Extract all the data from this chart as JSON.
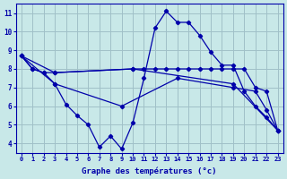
{
  "background_color": "#c8e8e8",
  "grid_color": "#a0c0c8",
  "line_color": "#0000aa",
  "xlabel": "Graphe des températures (°c)",
  "xlim": [
    -0.5,
    23.5
  ],
  "ylim": [
    3.5,
    11.5
  ],
  "yticks": [
    4,
    5,
    6,
    7,
    8,
    9,
    10,
    11
  ],
  "xticks": [
    0,
    1,
    2,
    3,
    4,
    5,
    6,
    7,
    8,
    9,
    10,
    11,
    12,
    13,
    14,
    15,
    16,
    17,
    18,
    19,
    20,
    21,
    22,
    23
  ],
  "line1_x": [
    0,
    1,
    2,
    3,
    4,
    5,
    6,
    7,
    8,
    9,
    10,
    11,
    12,
    13,
    14,
    15,
    16,
    17,
    18,
    19,
    20,
    21,
    22,
    23
  ],
  "line1_y": [
    8.7,
    8.0,
    7.8,
    7.2,
    6.1,
    5.5,
    5.0,
    3.8,
    4.4,
    3.7,
    5.1,
    7.5,
    10.2,
    11.1,
    10.5,
    10.5,
    9.8,
    8.9,
    8.2,
    8.2,
    6.8,
    6.0,
    5.4,
    4.7
  ],
  "line2_x": [
    0,
    1,
    2,
    3,
    10,
    11,
    12,
    13,
    14,
    15,
    16,
    17,
    18,
    19,
    20,
    21,
    22,
    23
  ],
  "line2_y": [
    8.7,
    8.0,
    7.8,
    7.8,
    8.0,
    8.0,
    8.0,
    8.0,
    8.0,
    8.0,
    8.0,
    8.0,
    8.0,
    8.0,
    8.0,
    7.0,
    6.8,
    4.7
  ],
  "line3_x": [
    0,
    3,
    10,
    19,
    23
  ],
  "line3_y": [
    8.7,
    7.8,
    8.0,
    7.2,
    4.7
  ],
  "line4_x": [
    0,
    3,
    9,
    14,
    19,
    21,
    22,
    23
  ],
  "line4_y": [
    8.7,
    7.2,
    6.0,
    7.5,
    7.0,
    6.8,
    5.8,
    4.7
  ]
}
